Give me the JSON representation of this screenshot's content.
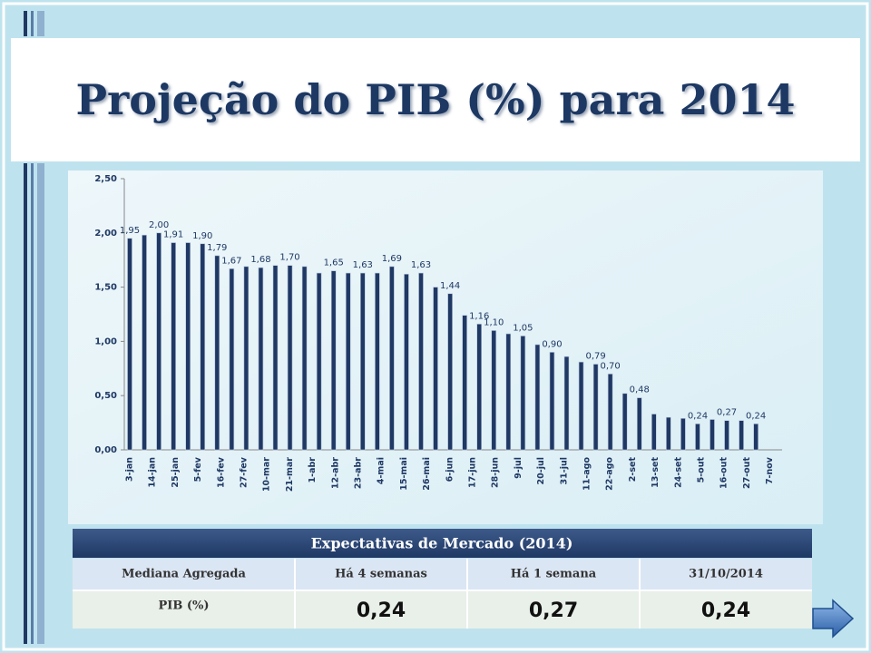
{
  "slide_title": "Projeção do PIB (%) para 2014",
  "chart_data": {
    "type": "bar",
    "color": "#1f3864",
    "xtick_labels": [
      "3-jan",
      "14-jan",
      "25-jan",
      "5-fev",
      "16-fev",
      "27-fev",
      "10-mar",
      "21-mar",
      "1-abr",
      "12-abr",
      "23-abr",
      "4-mai",
      "15-mai",
      "26-mai",
      "6-jun",
      "17-jun",
      "28-jun",
      "9-jul",
      "20-jul",
      "31-jul",
      "11-ago",
      "22-ago",
      "2-set",
      "13-set",
      "24-set",
      "5-out",
      "16-out",
      "27-out",
      "7-nov"
    ],
    "values": [
      1.95,
      1.98,
      2.0,
      1.91,
      1.91,
      1.9,
      1.79,
      1.67,
      1.69,
      1.68,
      1.7,
      1.7,
      1.69,
      1.63,
      1.65,
      1.63,
      1.63,
      1.63,
      1.69,
      1.62,
      1.63,
      1.5,
      1.44,
      1.24,
      1.16,
      1.1,
      1.07,
      1.05,
      0.97,
      0.9,
      0.86,
      0.81,
      0.79,
      0.7,
      0.52,
      0.48,
      0.33,
      0.3,
      0.29,
      0.24,
      0.28,
      0.27,
      0.27,
      0.24
    ],
    "value_labels": [
      "1,95",
      null,
      "2,00",
      "1,91",
      null,
      "1,90",
      "1,79",
      "1,67",
      null,
      "1,68",
      null,
      "1,70",
      null,
      null,
      "1,65",
      null,
      "1,63",
      null,
      "1,69",
      null,
      "1,63",
      null,
      "1,44",
      null,
      "1,16",
      "1,10",
      null,
      "1,05",
      null,
      "0,90",
      null,
      null,
      "0,79",
      "0,70",
      null,
      "0,48",
      null,
      null,
      null,
      "0,24",
      null,
      "0,27",
      null,
      "0,24"
    ],
    "ylim": [
      0,
      2.5
    ],
    "yticks": [
      {
        "value": 0,
        "label": "0,00"
      },
      {
        "value": 0.5,
        "label": "0,50"
      },
      {
        "value": 1,
        "label": "1,00"
      },
      {
        "value": 1.5,
        "label": "1,50"
      },
      {
        "value": 2,
        "label": "2,00"
      },
      {
        "value": 2.5,
        "label": "2,50"
      }
    ]
  },
  "table": {
    "title": "Expectativas de Mercado (2014)",
    "header": [
      "Mediana Agregada",
      "Há 4 semanas",
      "Há 1 semana",
      "31/10/2014"
    ],
    "rows": [
      [
        "PIB (%)",
        "0,24",
        "0,27",
        "0,24"
      ]
    ]
  }
}
